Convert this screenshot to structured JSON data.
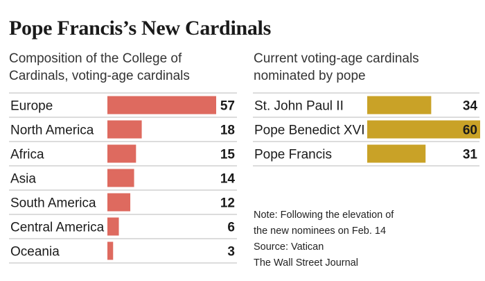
{
  "title": "Pope Francis’s New Cardinals",
  "colors": {
    "left_bar": "#de6a5f",
    "right_bar": "#c9a227",
    "divider": "#b9b9b9"
  },
  "chart_data": [
    {
      "type": "bar",
      "orientation": "horizontal",
      "title": "Composition of the College of Cardinals, voting-age cardinals",
      "categories": [
        "Europe",
        "North America",
        "Africa",
        "Asia",
        "South America",
        "Central America",
        "Oceania"
      ],
      "values": [
        57,
        18,
        15,
        14,
        12,
        6,
        3
      ],
      "xlim": [
        0,
        57
      ]
    },
    {
      "type": "bar",
      "orientation": "horizontal",
      "title": "Current voting-age cardinals nominated by pope",
      "categories": [
        "St. John Paul II",
        "Pope Benedict XVI",
        "Pope Francis"
      ],
      "values": [
        34,
        60,
        31
      ],
      "xlim": [
        0,
        60
      ]
    }
  ],
  "subtitles": {
    "left_line1": "Composition of the College of",
    "left_line2": "Cardinals, voting-age cardinals",
    "right_line1": "Current voting-age cardinals",
    "right_line2": "nominated by pope"
  },
  "notes": {
    "note_line1": "Note: Following the elevation of",
    "note_line2": "the new nominees on Feb. 14",
    "source": "Source: Vatican",
    "credit": "The Wall Street Journal"
  }
}
